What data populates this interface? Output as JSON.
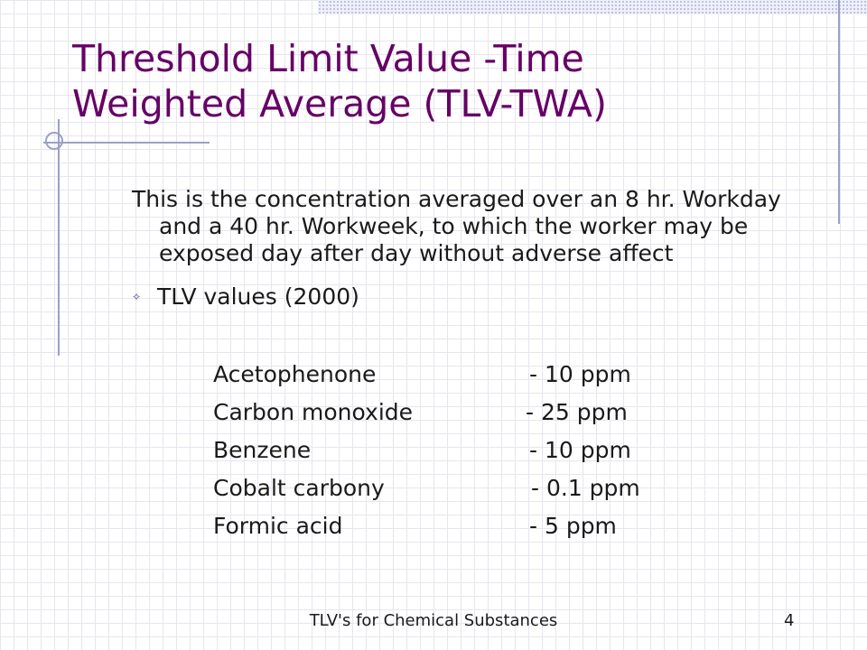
{
  "slide": {
    "title_line1": "Threshold Limit Value -Time",
    "title_line2": "Weighted Average (TLV-TWA)",
    "description": "This is the concentration averaged over an 8 hr. Workday and a 40 hr. Workweek, to which the worker may be exposed day after day without adverse affect",
    "bullet_label": "TLV values (2000)",
    "bullet_icon": "diamond-bullet-icon",
    "tlv_values": [
      {
        "substance": "Acetophenone",
        "value": "- 10 ppm"
      },
      {
        "substance": "Carbon monoxide",
        "value": "- 25 ppm"
      },
      {
        "substance": "Benzene",
        "value": "- 10 ppm"
      },
      {
        "substance": "Cobalt carbony",
        "value": "- 0.1 ppm"
      },
      {
        "substance": "Formic acid",
        "value": "- 5 ppm"
      }
    ]
  },
  "footer": {
    "text": "TLV's for Chemical Substances",
    "page_number": "4"
  },
  "colors": {
    "title": "#660066",
    "decoration": "#9aa0c8"
  }
}
